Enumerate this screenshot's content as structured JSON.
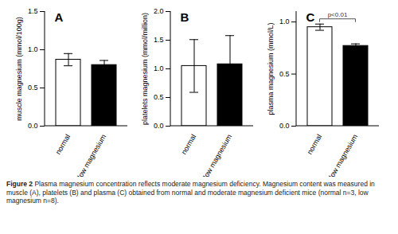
{
  "chart_data": [
    {
      "type": "bar",
      "title": "A",
      "ylabel": "muscle magnesium (mmol/100g)",
      "categories": [
        "normal",
        "low magnesium"
      ],
      "values": [
        0.87,
        0.8
      ],
      "errors": [
        0.08,
        0.06
      ],
      "colors": [
        "#ffffff",
        "#000000"
      ],
      "ylim": [
        0,
        1.5
      ],
      "yticks": [
        {
          "value": 0,
          "label": "0.0"
        },
        0.5,
        {
          "value": 1,
          "label": "1.0"
        },
        1.5
      ]
    },
    {
      "type": "bar",
      "title": "B",
      "ylabel": "platelets magnesium (mmol/million)",
      "categories": [
        "normal",
        "low magnesium"
      ],
      "values": [
        1.05,
        1.08
      ],
      "errors": [
        0.46,
        0.5
      ],
      "colors": [
        "#ffffff",
        "#000000"
      ],
      "ylim": [
        0,
        2
      ],
      "yticks": [
        {
          "value": 0,
          "label": "0.0"
        },
        0.5,
        {
          "value": 1,
          "label": "1.0"
        },
        1.5,
        {
          "value": 2,
          "label": "2.0"
        }
      ]
    },
    {
      "type": "bar",
      "title": "C",
      "ylabel": "plasma magnesium (mmol/L)",
      "categories": [
        "normal",
        "low magnesium"
      ],
      "values": [
        0.95,
        0.77
      ],
      "errors": [
        0.03,
        0.02
      ],
      "colors": [
        "#ffffff",
        "#000000"
      ],
      "ylim": [
        0,
        1.1
      ],
      "yticks": [
        {
          "value": 0,
          "label": "0.0"
        },
        0.5,
        {
          "value": 1,
          "label": "1.0"
        }
      ],
      "annotations": [
        {
          "text": "p<0.01",
          "between": [
            "normal",
            "low magnesium"
          ]
        }
      ]
    }
  ],
  "caption": {
    "label": "Figure 2",
    "text": "Plasma magnesium concentration reflects moderate magnesium deficiency. Magnesium content was measured in muscle (A), platelets (B) and plasma (C) obtained from normal and moderate magnesium deficient mice (normal n=3, low magnesium n=8)."
  }
}
